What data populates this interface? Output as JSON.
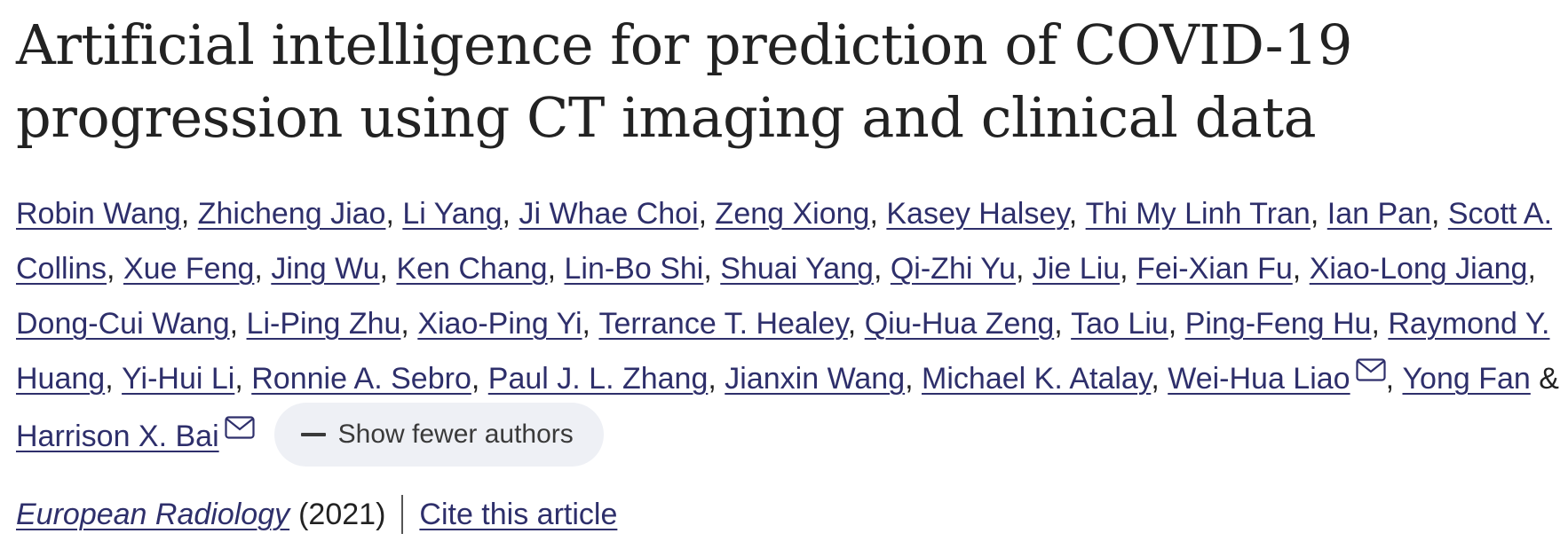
{
  "title": "Artificial intelligence for prediction of COVID-19 progression using CT imaging and clinical data",
  "authors": [
    {
      "name": "Robin Wang",
      "sep": ", "
    },
    {
      "name": "Zhicheng Jiao",
      "sep": ", "
    },
    {
      "name": "Li Yang",
      "sep": ", "
    },
    {
      "name": "Ji Whae Choi",
      "sep": ", "
    },
    {
      "name": "Zeng Xiong",
      "sep": ", "
    },
    {
      "name": "Kasey Halsey",
      "sep": ", "
    },
    {
      "name": "Thi My Linh Tran",
      "sep": ", "
    },
    {
      "name": "Ian Pan",
      "sep": ", "
    },
    {
      "name": "Scott A. Collins",
      "sep": ", "
    },
    {
      "name": "Xue Feng",
      "sep": ", "
    },
    {
      "name": "Jing Wu",
      "sep": ", "
    },
    {
      "name": "Ken Chang",
      "sep": ", "
    },
    {
      "name": "Lin-Bo Shi",
      "sep": ", "
    },
    {
      "name": "Shuai Yang",
      "sep": ", "
    },
    {
      "name": "Qi-Zhi Yu",
      "sep": ", "
    },
    {
      "name": "Jie Liu",
      "sep": ", "
    },
    {
      "name": "Fei-Xian Fu",
      "sep": ", "
    },
    {
      "name": "Xiao-Long Jiang",
      "sep": ", "
    },
    {
      "name": "Dong-Cui Wang",
      "sep": ", "
    },
    {
      "name": "Li-Ping Zhu",
      "sep": ", "
    },
    {
      "name": "Xiao-Ping Yi",
      "sep": ", "
    },
    {
      "name": "Terrance T. Healey",
      "sep": ", "
    },
    {
      "name": "Qiu-Hua Zeng",
      "sep": ", "
    },
    {
      "name": "Tao Liu",
      "sep": ", "
    },
    {
      "name": "Ping-Feng Hu",
      "sep": ", "
    },
    {
      "name": "Raymond Y. Huang",
      "sep": ", "
    },
    {
      "name": "Yi-Hui Li",
      "sep": ", "
    },
    {
      "name": "Ronnie A. Sebro",
      "sep": ", "
    },
    {
      "name": "Paul J. L. Zhang",
      "sep": ", "
    },
    {
      "name": "Jianxin Wang",
      "sep": ", "
    },
    {
      "name": "Michael K. Atalay",
      "sep": ", "
    },
    {
      "name": "Wei-Hua Liao",
      "sep": ", ",
      "icon": "mail-icon"
    },
    {
      "name": "Yong Fan",
      "sep": " & "
    },
    {
      "name": "Harrison X. Bai",
      "sep": "",
      "icon": "mail-icon"
    }
  ],
  "show_fewer": {
    "label": "Show fewer authors",
    "icon": "minus-icon"
  },
  "citation": {
    "journal": "European Radiology",
    "year": "(2021)",
    "cite_label": "Cite this article"
  },
  "colors": {
    "link": "#2e2f6b",
    "text": "#222222",
    "button_bg": "#eef0f5"
  }
}
